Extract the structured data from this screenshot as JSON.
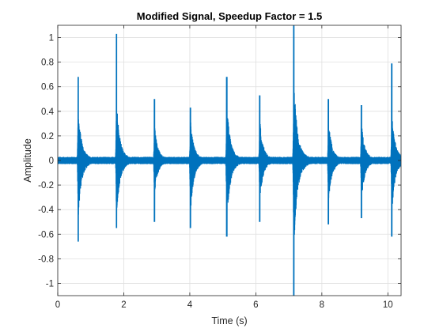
{
  "chart_data": {
    "type": "line",
    "title": "Modified Signal, Speedup Factor = 1.5",
    "xlabel": "Time (s)",
    "ylabel": "Amplitude",
    "xlim": [
      0,
      10.4
    ],
    "ylim": [
      -1.1,
      1.1
    ],
    "xticks": [
      0,
      2,
      4,
      6,
      8,
      10
    ],
    "xtick_labels": [
      "0",
      "2",
      "4",
      "6",
      "8",
      "10"
    ],
    "yticks": [
      -1,
      -0.8,
      -0.6,
      -0.4,
      -0.2,
      0,
      0.2,
      0.4,
      0.6,
      0.8,
      1
    ],
    "ytick_labels": [
      "-1",
      "-0.8",
      "-0.6",
      "-0.4",
      "-0.2",
      "0",
      "0.2",
      "0.4",
      "0.6",
      "0.8",
      "1"
    ],
    "grid": true,
    "line_color": "#0072BD",
    "baseline_noise_amplitude": 0.03,
    "bursts": [
      {
        "t": 0.62,
        "peak_max": 0.68,
        "peak_min": -0.66,
        "envelope_max": 0.45,
        "envelope_min": -0.5
      },
      {
        "t": 1.78,
        "peak_max": 1.03,
        "peak_min": -0.55,
        "envelope_max": 0.5,
        "envelope_min": -0.5
      },
      {
        "t": 2.93,
        "peak_max": 0.5,
        "peak_min": -0.5,
        "envelope_max": 0.3,
        "envelope_min": -0.3
      },
      {
        "t": 4.02,
        "peak_max": 0.43,
        "peak_min": -0.55,
        "envelope_max": 0.35,
        "envelope_min": -0.45
      },
      {
        "t": 5.12,
        "peak_max": 0.68,
        "peak_min": -0.62,
        "envelope_max": 0.5,
        "envelope_min": -0.55
      },
      {
        "t": 6.12,
        "peak_max": 0.53,
        "peak_min": -0.5,
        "envelope_max": 0.35,
        "envelope_min": -0.35
      },
      {
        "t": 7.15,
        "peak_max": 1.1,
        "peak_min": -1.1,
        "envelope_max": 0.72,
        "envelope_min": -0.82
      },
      {
        "t": 8.2,
        "peak_max": 0.5,
        "peak_min": -0.52,
        "envelope_max": 0.35,
        "envelope_min": -0.38
      },
      {
        "t": 9.2,
        "peak_max": 0.45,
        "peak_min": -0.47,
        "envelope_max": 0.32,
        "envelope_min": -0.35
      },
      {
        "t": 10.12,
        "peak_max": 0.79,
        "peak_min": -0.62,
        "envelope_max": 0.4,
        "envelope_min": -0.45
      }
    ]
  }
}
